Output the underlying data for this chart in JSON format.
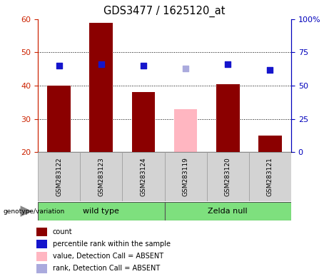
{
  "title": "GDS3477 / 1625120_at",
  "samples": [
    "GSM283122",
    "GSM283123",
    "GSM283124",
    "GSM283119",
    "GSM283120",
    "GSM283121"
  ],
  "count_values": [
    40.0,
    59.0,
    38.0,
    33.0,
    40.5,
    25.0
  ],
  "count_absent": [
    false,
    false,
    false,
    true,
    false,
    false
  ],
  "rank_values": [
    65.0,
    66.0,
    65.0,
    63.0,
    66.0,
    62.0
  ],
  "rank_absent": [
    false,
    false,
    false,
    true,
    false,
    false
  ],
  "ylim_left": [
    20,
    60
  ],
  "ylim_right": [
    0,
    100
  ],
  "yticks_left": [
    20,
    30,
    40,
    50,
    60
  ],
  "yticks_right": [
    0,
    25,
    50,
    75,
    100
  ],
  "bar_color_normal": "#8B0000",
  "bar_color_absent": "#FFB6C1",
  "dot_color_normal": "#1515CC",
  "dot_color_absent": "#AAAADD",
  "group_color": "#7EE07E",
  "ylabel_left_color": "#CC2200",
  "ylabel_right_color": "#0000BB",
  "baseline": 20,
  "bar_width": 0.55,
  "dot_size": 35,
  "legend_items": [
    {
      "label": "count",
      "color": "#8B0000"
    },
    {
      "label": "percentile rank within the sample",
      "color": "#1515CC"
    },
    {
      "label": "value, Detection Call = ABSENT",
      "color": "#FFB6C1"
    },
    {
      "label": "rank, Detection Call = ABSENT",
      "color": "#AAAADD"
    }
  ]
}
